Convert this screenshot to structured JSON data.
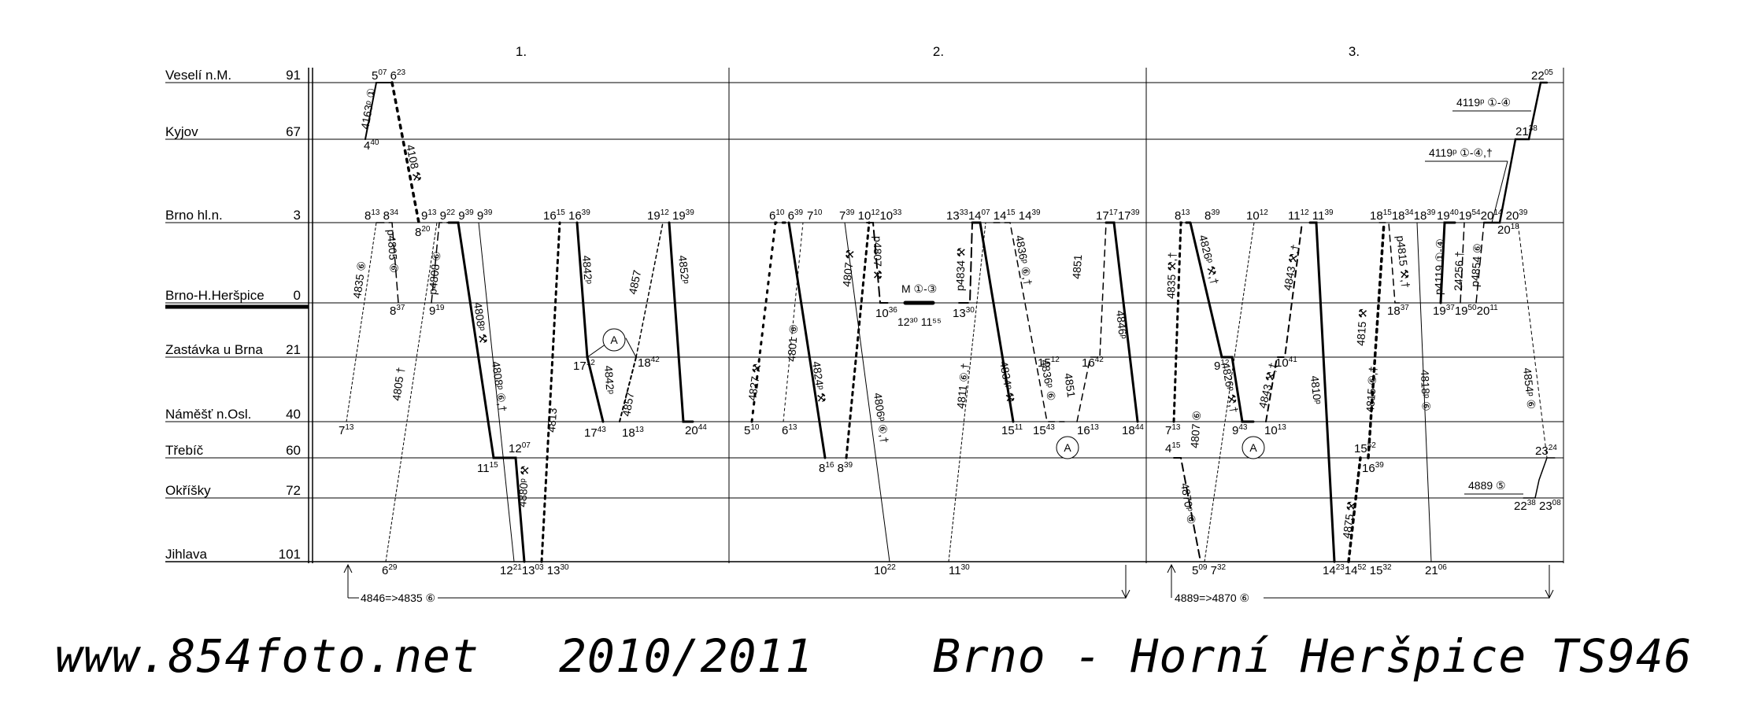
{
  "periods": [
    "1.",
    "2.",
    "3."
  ],
  "stations": [
    {
      "name": "Veselí n.M.",
      "km": "91"
    },
    {
      "name": "Kyjov",
      "km": "67"
    },
    {
      "name": "Brno hl.n.",
      "km": "3"
    },
    {
      "name": "Brno-H.Heršpice",
      "km": "0"
    },
    {
      "name": "Zastávka u Brna",
      "km": "21"
    },
    {
      "name": "Náměšť n.Osl.",
      "km": "40"
    },
    {
      "name": "Třebíč",
      "km": "60"
    },
    {
      "name": "Okříšky",
      "km": "72"
    },
    {
      "name": "Jihlava",
      "km": "101"
    }
  ],
  "trains": [
    {
      "label": "4163ᵖ ①"
    },
    {
      "label": "4108 ⚒"
    },
    {
      "label": "4835 ⑥"
    },
    {
      "label": "p4805 ⑥"
    },
    {
      "label": "p4808 ⑥"
    },
    {
      "label": "4805 †"
    },
    {
      "label": "4808ᵖ ⚒"
    },
    {
      "label": "4808ᵖ ⑥,†"
    },
    {
      "label": "4813"
    },
    {
      "label": "4880ᵖ ⚒"
    },
    {
      "label": "4842ᵖ"
    },
    {
      "label": "4857"
    },
    {
      "label": "4852ᵖ"
    },
    {
      "label": "4842ᵖ"
    },
    {
      "label": "4857"
    },
    {
      "label": "4827 ⚒"
    },
    {
      "label": "4801 ⑥"
    },
    {
      "label": "4824ᵖ ⚒"
    },
    {
      "label": "4807 ⚒"
    },
    {
      "label": "p4807 ⚒"
    },
    {
      "label": "4806ᵖ ⑥,†"
    },
    {
      "label": "p4834 ⚒"
    },
    {
      "label": "4811 ⑥,†"
    },
    {
      "label": "4834ᵖ ⚒"
    },
    {
      "label": "4836ᵖ ⑥,†"
    },
    {
      "label": "4836ᵖ ⑥"
    },
    {
      "label": "4851"
    },
    {
      "label": "4851"
    },
    {
      "label": "4846ᵖ"
    },
    {
      "label": "4835 ⚒,†"
    },
    {
      "label": "4826ᵖ ⚒,†"
    },
    {
      "label": "4843 ⚒,†"
    },
    {
      "label": "4807 ⑥"
    },
    {
      "label": "4826ᵖ ⚒,†"
    },
    {
      "label": "4843 ⚒,†"
    },
    {
      "label": "4810ᵖ"
    },
    {
      "label": "4870ᵖ ⑥"
    },
    {
      "label": "4875 ⚒"
    },
    {
      "label": "4815 ⑥,†"
    },
    {
      "label": "4815 ⚒"
    },
    {
      "label": "4818ᵖ ⑥"
    },
    {
      "label": "p4815 ⚒,†"
    },
    {
      "label": "p4119 ①-④"
    },
    {
      "label": "24256 †"
    },
    {
      "label": "p4854 ⑥"
    },
    {
      "label": "4854ᵖ ⑥"
    }
  ],
  "annotations": {
    "train_4119_a": "4119ᵖ ①-④",
    "train_4119_b": "4119ᵖ ①-④,†",
    "train_4889": "4889 ⑤",
    "marker_a": "A",
    "shunt_m": "M ①-③",
    "shunt_m_time": "12³⁰ 11⁵⁵",
    "bottom_1": "4846=>4835 ⑥",
    "bottom_2": "4889=>4870 ⑥"
  },
  "footer": {
    "url": "www.854foto.net",
    "period": "2010/2011",
    "station": "Brno - Horní Heršpice",
    "code": "TS946"
  }
}
